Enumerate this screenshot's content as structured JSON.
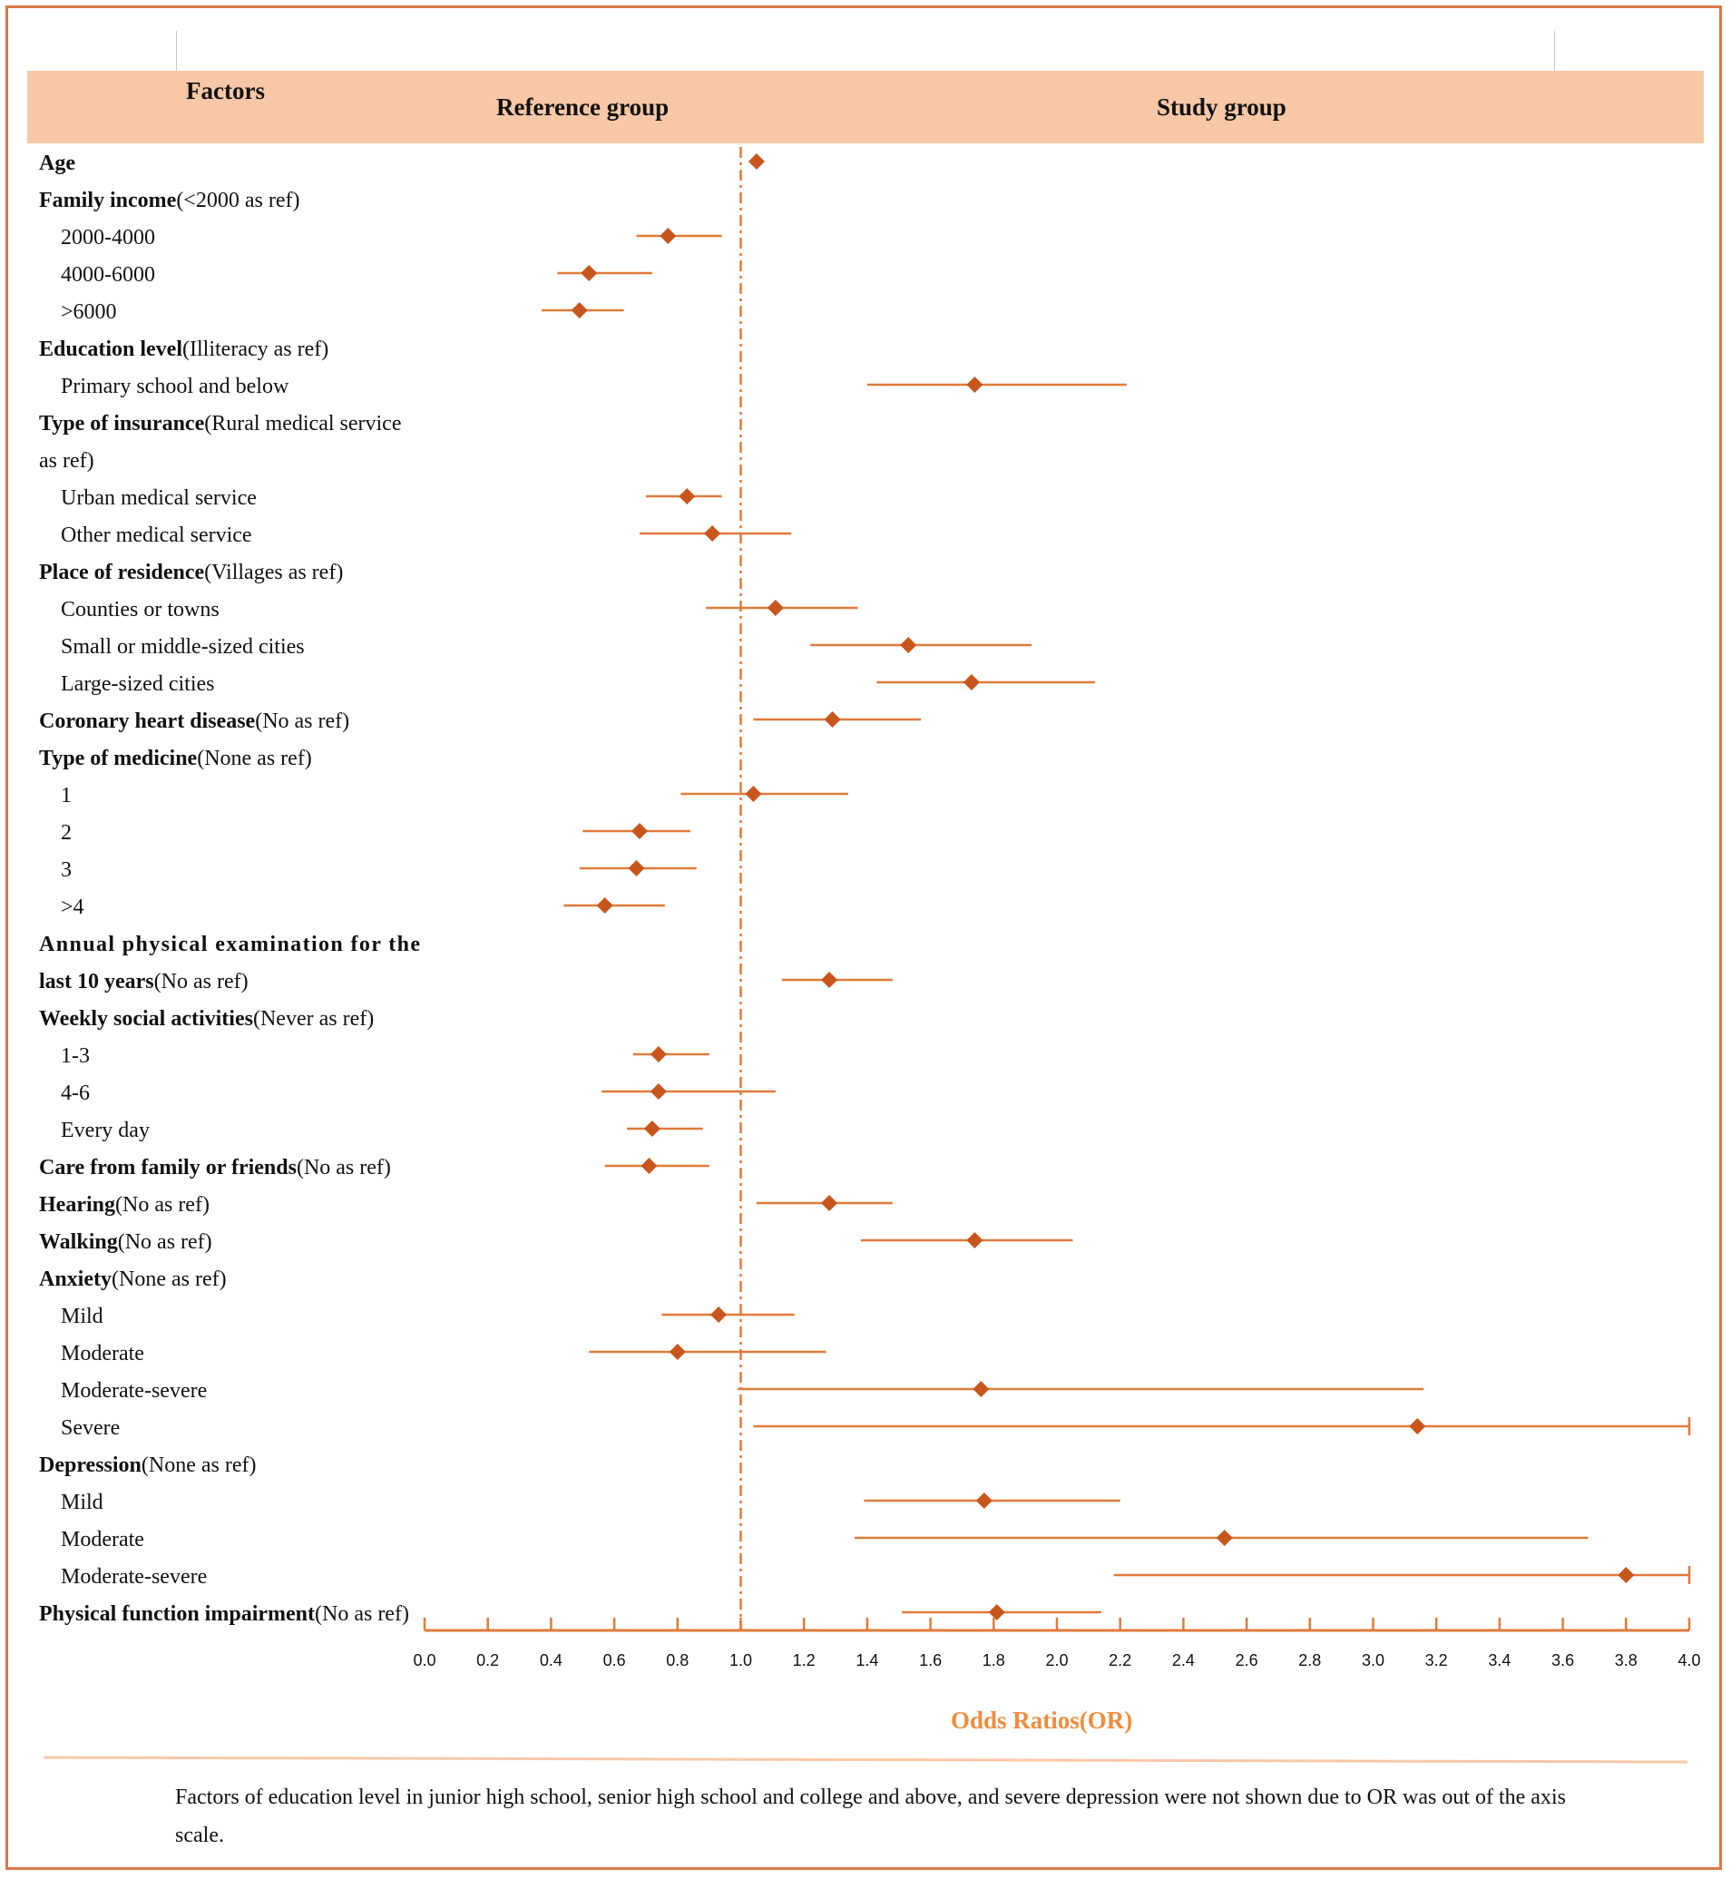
{
  "header": {
    "factors_label": "Factors",
    "reference_label": "Reference group",
    "study_label": "Study group"
  },
  "chart_data": {
    "type": "forest",
    "title": "",
    "xlabel": "Odds Ratios(OR)",
    "ylabel": "",
    "xlim": [
      0.0,
      4.0
    ],
    "reference_line": 1.0,
    "x_ticks": [
      "0.0",
      "0.2",
      "0.4",
      "0.6",
      "0.8",
      "1.0",
      "1.2",
      "1.4",
      "1.6",
      "1.8",
      "2.0",
      "2.2",
      "2.4",
      "2.6",
      "2.8",
      "3.0",
      "3.2",
      "3.4",
      "3.6",
      "3.8",
      "4.0"
    ],
    "rows": [
      {
        "label": "Age",
        "bold": "Age",
        "suffix": "",
        "indent": false,
        "or": 1.05,
        "lo": null,
        "hi": null
      },
      {
        "label": "Family income(<2000 as ref)",
        "bold": "Family income",
        "suffix": "(<2000 as ref)",
        "indent": false,
        "or": null,
        "lo": null,
        "hi": null
      },
      {
        "label": "2000-4000",
        "bold": "",
        "suffix": "2000-4000",
        "indent": true,
        "or": 0.77,
        "lo": 0.67,
        "hi": 0.94
      },
      {
        "label": "4000-6000",
        "bold": "",
        "suffix": "4000-6000",
        "indent": true,
        "or": 0.52,
        "lo": 0.42,
        "hi": 0.72
      },
      {
        "label": ">6000",
        "bold": "",
        "suffix": ">6000",
        "indent": true,
        "or": 0.49,
        "lo": 0.37,
        "hi": 0.63
      },
      {
        "label": "Education level(Illiteracy as ref)",
        "bold": "Education level",
        "suffix": "(Illiteracy as ref)",
        "indent": false,
        "or": null,
        "lo": null,
        "hi": null
      },
      {
        "label": "Primary school and below",
        "bold": "",
        "suffix": "Primary school and below",
        "indent": true,
        "or": 1.74,
        "lo": 1.4,
        "hi": 2.22
      },
      {
        "label": "Type of insurance(Rural medical service",
        "bold": "Type of insurance",
        "suffix": "(Rural medical service",
        "indent": false,
        "or": null,
        "lo": null,
        "hi": null
      },
      {
        "label": "as ref)",
        "bold": "",
        "suffix": "as ref)",
        "indent": false,
        "or": null,
        "lo": null,
        "hi": null
      },
      {
        "label": "Urban medical service",
        "bold": "",
        "suffix": "Urban medical service",
        "indent": true,
        "or": 0.83,
        "lo": 0.7,
        "hi": 0.94
      },
      {
        "label": "Other medical service",
        "bold": "",
        "suffix": "Other medical service",
        "indent": true,
        "or": 0.91,
        "lo": 0.68,
        "hi": 1.16
      },
      {
        "label": "Place of residence(Villages as ref)",
        "bold": "Place of residence",
        "suffix": "(Villages as ref)",
        "indent": false,
        "or": null,
        "lo": null,
        "hi": null
      },
      {
        "label": "Counties or towns",
        "bold": "",
        "suffix": "Counties or towns",
        "indent": true,
        "or": 1.11,
        "lo": 0.89,
        "hi": 1.37
      },
      {
        "label": "Small or middle-sized cities",
        "bold": "",
        "suffix": "Small or middle-sized cities",
        "indent": true,
        "or": 1.53,
        "lo": 1.22,
        "hi": 1.92
      },
      {
        "label": "Large-sized cities",
        "bold": "",
        "suffix": "Large-sized cities",
        "indent": true,
        "or": 1.73,
        "lo": 1.43,
        "hi": 2.12
      },
      {
        "label": "Coronary heart disease(No as ref)",
        "bold": "Coronary heart disease",
        "suffix": "(No as ref)",
        "indent": false,
        "or": 1.29,
        "lo": 1.04,
        "hi": 1.57
      },
      {
        "label": "Type of medicine(None as ref)",
        "bold": "Type of medicine",
        "suffix": "(None as ref)",
        "indent": false,
        "or": null,
        "lo": null,
        "hi": null
      },
      {
        "label": "1",
        "bold": "",
        "suffix": "1",
        "indent": true,
        "or": 1.04,
        "lo": 0.81,
        "hi": 1.34
      },
      {
        "label": "2",
        "bold": "",
        "suffix": "2",
        "indent": true,
        "or": 0.68,
        "lo": 0.5,
        "hi": 0.84
      },
      {
        "label": "3",
        "bold": "",
        "suffix": "3",
        "indent": true,
        "or": 0.67,
        "lo": 0.49,
        "hi": 0.86
      },
      {
        "label": ">4",
        "bold": "",
        "suffix": ">4",
        "indent": true,
        "or": 0.57,
        "lo": 0.44,
        "hi": 0.76
      },
      {
        "label": "Annual physical examination for the",
        "bold": "Annual physical examination for the",
        "suffix": "",
        "indent": false,
        "or": null,
        "lo": null,
        "hi": null
      },
      {
        "label": "last 10 years(No as ref)",
        "bold": "last 10 years",
        "suffix": "(No as ref)",
        "indent": false,
        "or": 1.28,
        "lo": 1.13,
        "hi": 1.48
      },
      {
        "label": "Weekly social activities(Never as ref)",
        "bold": "Weekly social activities",
        "suffix": "(Never as ref)",
        "indent": false,
        "or": null,
        "lo": null,
        "hi": null
      },
      {
        "label": "1-3",
        "bold": "",
        "suffix": "1-3",
        "indent": true,
        "or": 0.74,
        "lo": 0.66,
        "hi": 0.9
      },
      {
        "label": "4-6",
        "bold": "",
        "suffix": "4-6",
        "indent": true,
        "or": 0.74,
        "lo": 0.56,
        "hi": 1.11
      },
      {
        "label": "Every day",
        "bold": "",
        "suffix": "Every day",
        "indent": true,
        "or": 0.72,
        "lo": 0.64,
        "hi": 0.88
      },
      {
        "label": "Care from family or friends(No as ref)",
        "bold": "Care from family or friends",
        "suffix": "(No as ref)",
        "indent": false,
        "or": 0.71,
        "lo": 0.57,
        "hi": 0.9
      },
      {
        "label": "Hearing(No as ref)",
        "bold": "Hearing",
        "suffix": "(No as ref)",
        "indent": false,
        "or": 1.28,
        "lo": 1.05,
        "hi": 1.48
      },
      {
        "label": "Walking(No as ref)",
        "bold": "Walking",
        "suffix": "(No as ref)",
        "indent": false,
        "or": 1.74,
        "lo": 1.38,
        "hi": 2.05
      },
      {
        "label": "Anxiety(None as ref)",
        "bold": "Anxiety",
        "suffix": "(None as ref)",
        "indent": false,
        "or": null,
        "lo": null,
        "hi": null
      },
      {
        "label": "Mild",
        "bold": "",
        "suffix": "Mild",
        "indent": true,
        "or": 0.93,
        "lo": 0.75,
        "hi": 1.17
      },
      {
        "label": "Moderate",
        "bold": "",
        "suffix": "Moderate",
        "indent": true,
        "or": 0.8,
        "lo": 0.52,
        "hi": 1.27
      },
      {
        "label": "Moderate-severe",
        "bold": "",
        "suffix": "Moderate-severe",
        "indent": true,
        "or": 1.76,
        "lo": 0.99,
        "hi": 3.16
      },
      {
        "label": "Severe",
        "bold": "",
        "suffix": "Severe",
        "indent": true,
        "or": 3.14,
        "lo": 1.04,
        "hi": 4.0
      },
      {
        "label": "Depression(None as ref)",
        "bold": "Depression",
        "suffix": "(None as ref)",
        "indent": false,
        "or": null,
        "lo": null,
        "hi": null
      },
      {
        "label": "Mild",
        "bold": "",
        "suffix": "Mild",
        "indent": true,
        "or": 1.77,
        "lo": 1.39,
        "hi": 2.2
      },
      {
        "label": "Moderate",
        "bold": "",
        "suffix": "Moderate",
        "indent": true,
        "or": 2.53,
        "lo": 1.36,
        "hi": 3.68
      },
      {
        "label": "Moderate-severe",
        "bold": "",
        "suffix": "Moderate-severe",
        "indent": true,
        "or": 3.8,
        "lo": 2.18,
        "hi": 4.0
      },
      {
        "label": "Physical function impairment(No as ref)",
        "bold": "Physical function impairment",
        "suffix": "(No as ref)",
        "indent": false,
        "or": 1.81,
        "lo": 1.51,
        "hi": 2.14
      }
    ]
  },
  "footnote": "Factors of education level in junior high school, senior high school and college and above, and severe depression were not shown due to OR was out of the axis scale.",
  "colors": {
    "accent": "#d9784a",
    "marker": "#c8561c",
    "ci_line": "#e07a3a",
    "header_band": "#f8c7a6",
    "axis_title": "#f08c3c"
  }
}
